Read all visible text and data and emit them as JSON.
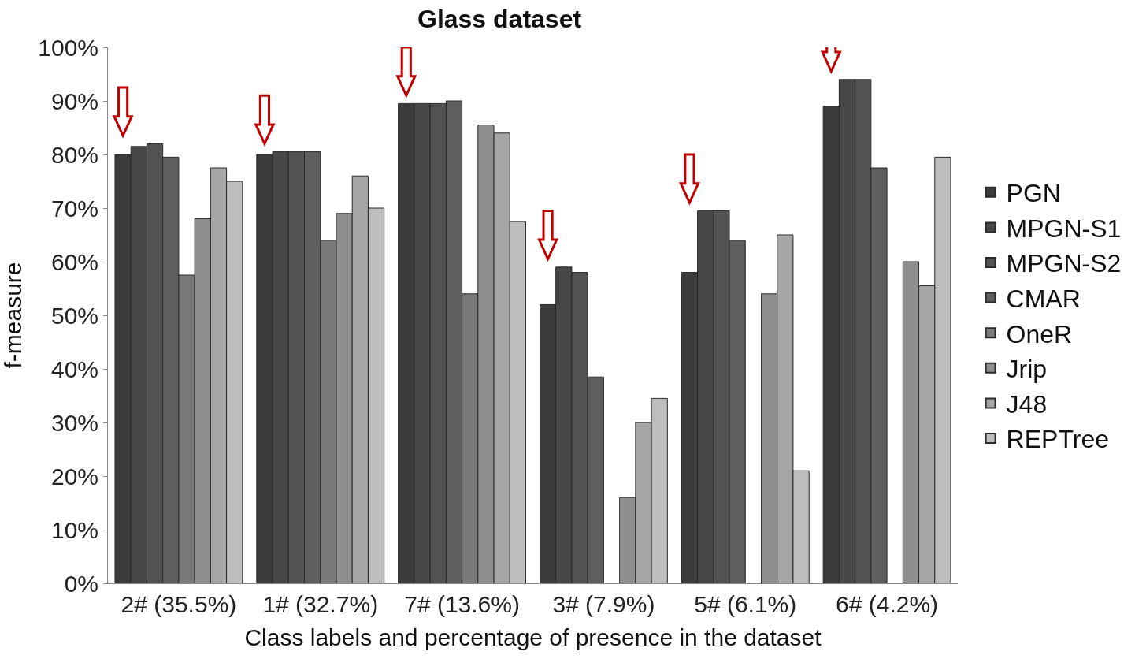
{
  "chart_data": {
    "type": "bar",
    "title": "Glass dataset",
    "xlabel": "Class labels and percentage of presence in the dataset",
    "ylabel": "f-measure",
    "categories": [
      "2# (35.5%)",
      "1# (32.7%)",
      "7# (13.6%)",
      "3# (7.9%)",
      "5# (6.1%)",
      "6# (4.2%)"
    ],
    "series": [
      {
        "name": "PGN",
        "color": "#3c3c3c",
        "values": [
          80,
          80,
          89.5,
          52,
          58,
          89
        ]
      },
      {
        "name": "MPGN-S1",
        "color": "#474747",
        "values": [
          81.5,
          80.5,
          89.5,
          59,
          69.5,
          94
        ]
      },
      {
        "name": "MPGN-S2",
        "color": "#525252",
        "values": [
          82,
          80.5,
          89.5,
          58,
          69.5,
          94
        ]
      },
      {
        "name": "CMAR",
        "color": "#5e5e5e",
        "values": [
          79.5,
          80.5,
          90,
          38.5,
          64,
          77.5
        ]
      },
      {
        "name": "OneR",
        "color": "#7a7a7a",
        "values": [
          57.5,
          64,
          54,
          null,
          null,
          null
        ]
      },
      {
        "name": "Jrip",
        "color": "#8f8f8f",
        "values": [
          68,
          69,
          85.5,
          16,
          54,
          60
        ]
      },
      {
        "name": "J48",
        "color": "#a6a6a6",
        "values": [
          77.5,
          76,
          84,
          30,
          65,
          55.5
        ]
      },
      {
        "name": "REPTree",
        "color": "#bdbdbd",
        "values": [
          75,
          70,
          67.5,
          34.5,
          21,
          79.5
        ]
      }
    ],
    "ylim": [
      0,
      100
    ],
    "yticks": [
      {
        "value": 0,
        "label": "0%"
      },
      {
        "value": 10,
        "label": "10%"
      },
      {
        "value": 20,
        "label": "20%"
      },
      {
        "value": 30,
        "label": "30%"
      },
      {
        "value": 40,
        "label": "40%"
      },
      {
        "value": 50,
        "label": "50%"
      },
      {
        "value": 60,
        "label": "60%"
      },
      {
        "value": 70,
        "label": "70%"
      },
      {
        "value": 80,
        "label": "80%"
      },
      {
        "value": 90,
        "label": "90%"
      },
      {
        "value": 100,
        "label": "100%"
      }
    ],
    "legend": "right"
  }
}
